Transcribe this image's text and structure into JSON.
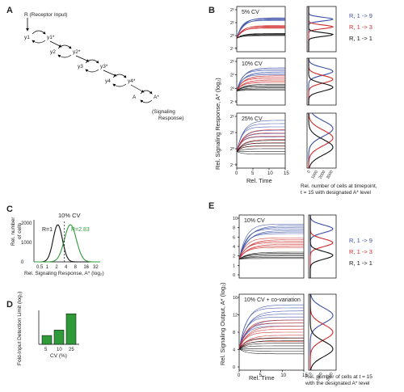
{
  "panel_labels": {
    "a": "A",
    "b": "B",
    "c": "C",
    "d": "D",
    "e": "E"
  },
  "panel_a": {
    "input": "R (Receptor Input)",
    "nodes": [
      "y1",
      "y1*",
      "y2",
      "y2*",
      "y3",
      "y3*",
      "y4",
      "y4*",
      "A",
      "A*"
    ],
    "output_line1": "(Signaling",
    "output_line2": "Response)"
  },
  "panel_b": {
    "cv_labels": [
      "5% CV",
      "10% CV",
      "25% CV"
    ],
    "ylabel": "Rel. Signaling Response, A* (log₂)",
    "xlabel": "Rel. Time",
    "x_ticks": [
      "0",
      "5",
      "10",
      "15"
    ],
    "y_ticks": [
      "2⁵",
      "2²",
      "2⁰",
      "2⁻¹"
    ],
    "hist_ticks": [
      "0",
      "1000",
      "2000",
      "3000"
    ],
    "legend": [
      "R, 1 -> 9",
      "R, 1 -> 3",
      "R, 1 -> 1"
    ],
    "hist_caption_line1": "Rel. number of cells at timepoint,",
    "hist_caption_line2": "t = 15 with designated A* level"
  },
  "panel_c": {
    "title": "10% CV",
    "ylabel_line1": "Rel. number",
    "ylabel_line2": "of cells",
    "y_ticks": [
      "2000",
      "1000",
      "0"
    ],
    "x_ticks": [
      "0.5",
      "1",
      "2",
      "4",
      "8",
      "16",
      "32"
    ],
    "xlabel": "Rel. Signaling Response, A* (log₂)",
    "label_r1": "R=1",
    "label_r2": "R=2.83"
  },
  "panel_d": {
    "ylabel": "Fold-Input Detection Limit (log₂)",
    "xlabel": "CV (%)"
  },
  "panel_e": {
    "top_title": "10% CV",
    "bottom_title": "10% CV + co-variation",
    "ylabel": "Rel. Signaling Output, A* (log₂)",
    "xlabel": "Rel. Time",
    "top_y_ticks": [
      "10",
      "8",
      "6",
      "4",
      "2",
      "1",
      "0"
    ],
    "bottom_y_ticks": [
      "16",
      "12",
      "8",
      "4",
      "0"
    ],
    "x_ticks": [
      "0",
      "5",
      "10",
      "15"
    ],
    "hist_ticks": [
      "0",
      "1000",
      "2000"
    ],
    "legend": [
      "R, 1 -> 9",
      "R, 1 -> 3",
      "R, 1 -> 1"
    ],
    "caption_line1": "Rel. number of cells at t = 15",
    "caption_line2": "with the designated A* level"
  },
  "colors": {
    "blue": "#3a4fa6",
    "red": "#cf2a2a",
    "black": "#111111",
    "green": "#2f9a3a",
    "gray": "#8a8a8a"
  },
  "chart_data": [
    {
      "type": "line",
      "panel": "B",
      "description_series": [
        "R, 1 -> 9",
        "R, 1 -> 3",
        "R, 1 -> 1"
      ],
      "x_range": [
        0,
        15
      ],
      "subplots": [
        "5% CV",
        "10% CV",
        "25% CV"
      ]
    },
    {
      "type": "line",
      "panel": "C",
      "title": "10% CV",
      "series": [
        {
          "name": "R=1"
        },
        {
          "name": "R=2.83"
        }
      ],
      "ylim": [
        0,
        2000
      ]
    },
    {
      "type": "bar",
      "panel": "D",
      "categories": [
        "5",
        "10",
        "25"
      ],
      "values": [
        1.3,
        2.1,
        4.5
      ],
      "xlabel": "CV (%)",
      "ylabel": "Fold-Input Detection Limit (log₂)"
    },
    {
      "type": "line",
      "panel": "E",
      "subplots": [
        "10% CV",
        "10% CV + co-variation"
      ],
      "x_range": [
        0,
        15
      ]
    }
  ]
}
